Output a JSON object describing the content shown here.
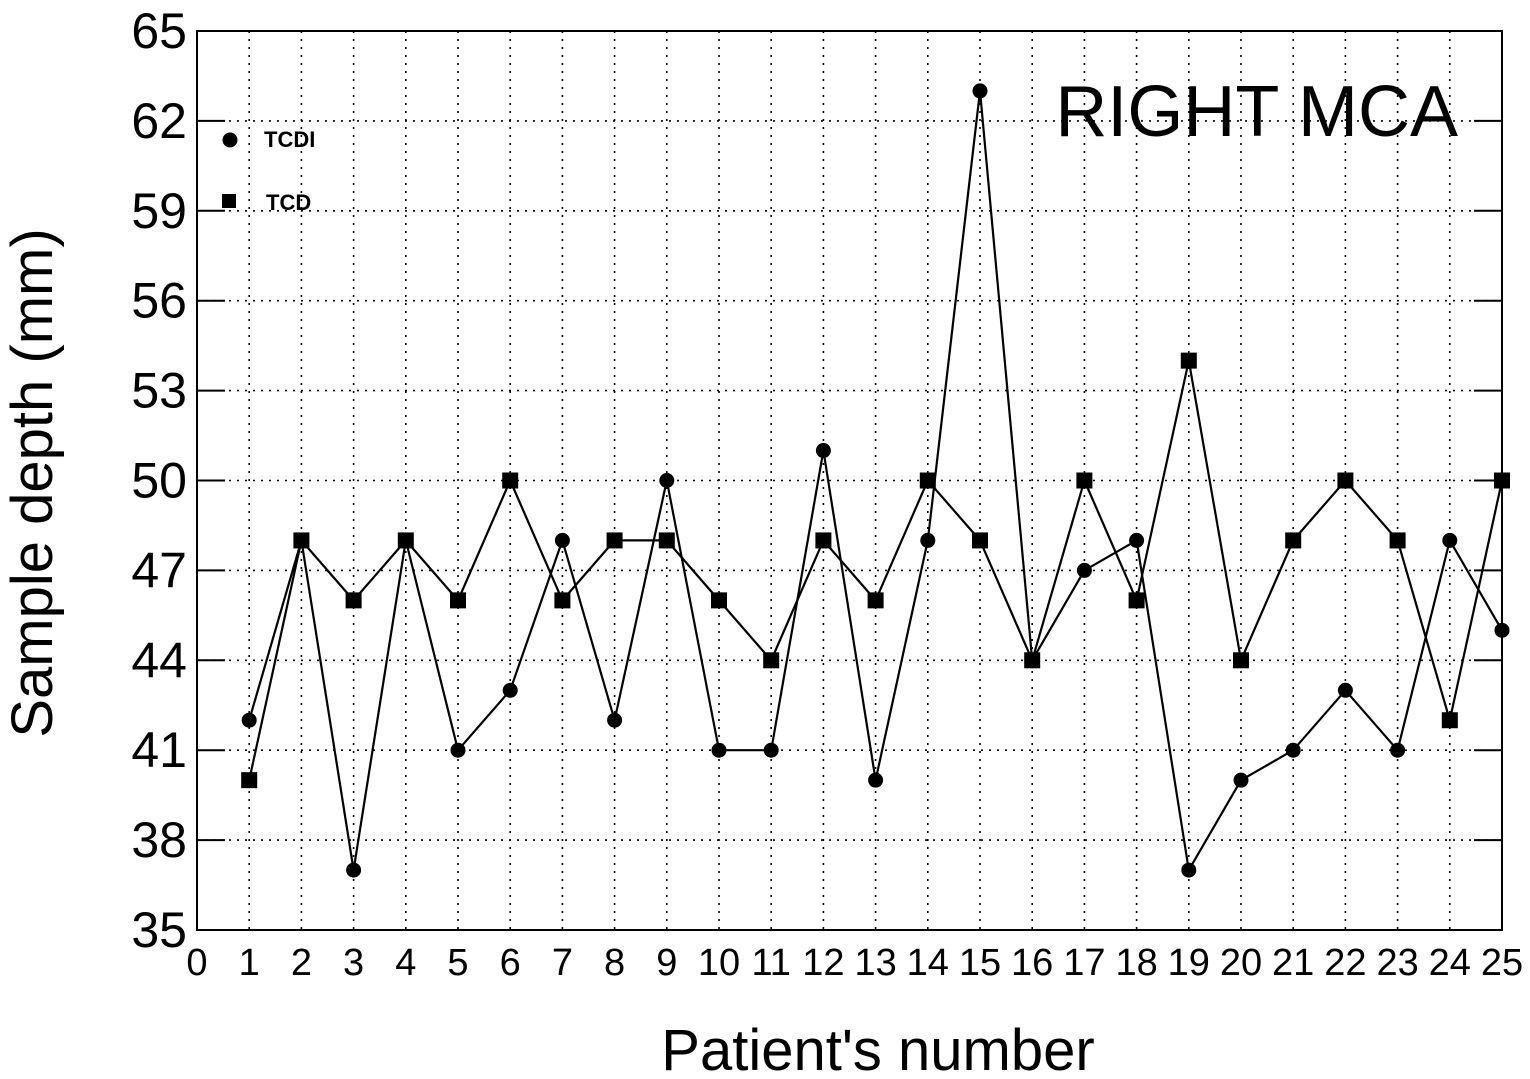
{
  "chart_data": {
    "type": "scatter",
    "title": "RIGHT MCA",
    "xlabel": "Patient's number",
    "ylabel": "Sample depth (mm)",
    "xlim": [
      0,
      25
    ],
    "ylim": [
      35,
      65
    ],
    "xticks": [
      "0",
      "1",
      "2",
      "3",
      "4",
      "5",
      "6",
      "7",
      "8",
      "9",
      "10",
      "11",
      "12",
      "13",
      "14",
      "15",
      "16",
      "17",
      "18",
      "19",
      "20",
      "21",
      "22",
      "23",
      "24",
      "25"
    ],
    "yticks": [
      "35",
      "38",
      "41",
      "44",
      "47",
      "50",
      "53",
      "56",
      "59",
      "62",
      "65"
    ],
    "grid": true,
    "legend_position": "top-left",
    "series": [
      {
        "name": "TCDI",
        "marker": "circle",
        "x": [
          1,
          2,
          3,
          4,
          5,
          6,
          7,
          8,
          9,
          10,
          11,
          12,
          13,
          14,
          15,
          16,
          17,
          18,
          19,
          20,
          21,
          22,
          23,
          24,
          25
        ],
        "values": [
          42,
          48,
          37,
          48,
          41,
          43,
          48,
          42,
          50,
          41,
          41,
          51,
          40,
          48,
          63,
          44,
          47,
          48,
          37,
          40,
          41,
          43,
          41,
          48,
          45
        ]
      },
      {
        "name": "TCD",
        "marker": "square",
        "x": [
          1,
          2,
          3,
          4,
          5,
          6,
          7,
          8,
          9,
          10,
          11,
          12,
          13,
          14,
          15,
          16,
          17,
          18,
          19,
          20,
          21,
          22,
          23,
          24,
          25
        ],
        "values": [
          40,
          48,
          46,
          48,
          46,
          50,
          46,
          48,
          48,
          46,
          44,
          48,
          46,
          50,
          48,
          44,
          50,
          46,
          54,
          44,
          48,
          50,
          48,
          42,
          50
        ]
      }
    ]
  }
}
